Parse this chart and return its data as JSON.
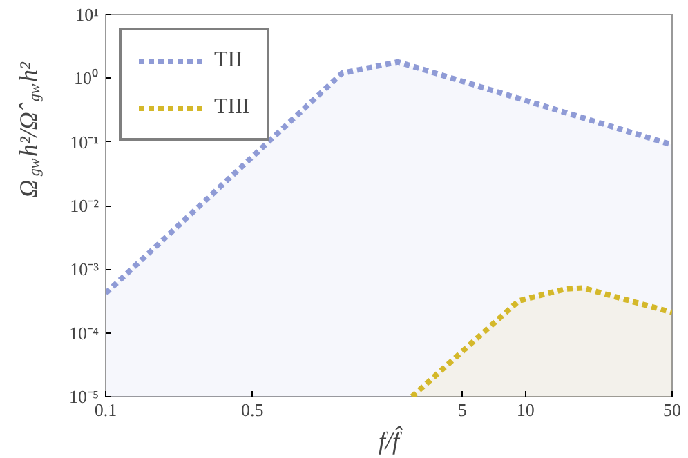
{
  "chart_data": {
    "type": "area",
    "xlabel": "f/f̂",
    "ylabel": "Ω$_{gw}$h²/Ω̂$_{gw}$h²",
    "log": "xy",
    "xlim": [
      0.1,
      50
    ],
    "ylim": [
      1e-05,
      10
    ],
    "xticks": [
      0.1,
      0.5,
      5,
      10,
      50
    ],
    "yticks": [
      {
        "value": 10,
        "label": "10¹"
      },
      {
        "value": 1,
        "label": "10⁰"
      },
      {
        "value": 0.1,
        "label": "10⁻¹"
      },
      {
        "value": 0.01,
        "label": "10⁻²"
      },
      {
        "value": 0.001,
        "label": "10⁻³"
      },
      {
        "value": 0.0001,
        "label": "10⁻⁴"
      },
      {
        "value": 1e-05,
        "label": "10⁻⁵"
      }
    ],
    "series": [
      {
        "name": "TII",
        "color": "#8f9bd6",
        "x": [
          0.1,
          1.34,
          2.47,
          50
        ],
        "values": [
          0.00042,
          1.2,
          1.8,
          0.09
        ]
      },
      {
        "name": "TIII",
        "color": "#d4b82a",
        "x": [
          2.88,
          9.3,
          15.5,
          18.8,
          50
        ],
        "values": [
          1e-05,
          0.00032,
          0.00049,
          0.00051,
          0.00021
        ]
      }
    ],
    "line_style": "dashed",
    "grid": false,
    "legend": "top left"
  }
}
